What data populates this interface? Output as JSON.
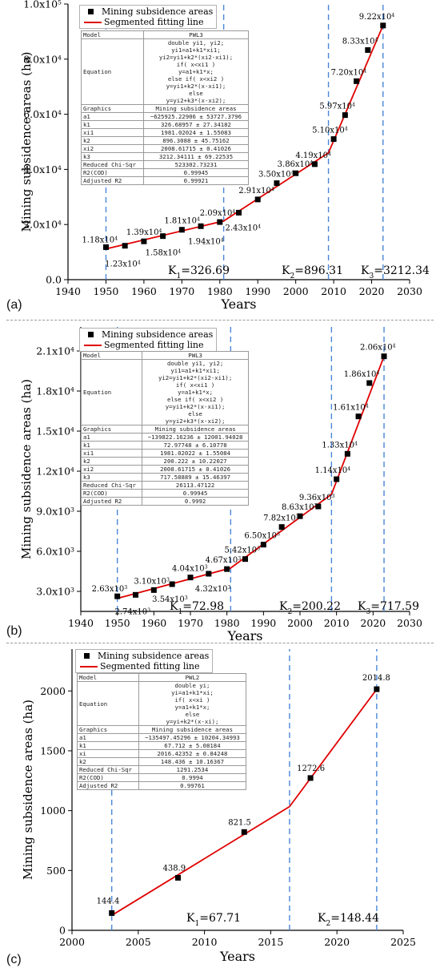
{
  "colors": {
    "fit_line": "#e00000",
    "marker": "#000000",
    "dashed_line": "#4a86d8",
    "separator": "#9a9a9a"
  },
  "panels": [
    {
      "panel_label": "(a)",
      "legend": {
        "marker_label": "Mining subsidence areas",
        "line_label": "Segmented fitting line"
      },
      "table": {
        "model_label": "Model",
        "model": "PWL3",
        "equation_label": "Equation",
        "equation": [
          "double yi1, yi2;",
          "yi1=a1+k1*xi1;",
          "yi2=yi1+k2*(xi2-xi1);",
          "if( x<xi1 )",
          "y=a1+k1*x;",
          "else if( x<xi2 )",
          "y=yi1+k2*(x-xi1);",
          "else",
          "y=yi2+k3*(x-xi2);"
        ],
        "graphics_label": "Graphics",
        "graphics": "Mining subsidence areas",
        "params": [
          {
            "name": "a1",
            "value": "−625925.22906 ± 53727.3796"
          },
          {
            "name": "k1",
            "value": "326.68957 ± 27.34182"
          },
          {
            "name": "xi1",
            "value": "1981.02024 ± 1.55083"
          },
          {
            "name": "k2",
            "value": "896.3088 ± 45.75162"
          },
          {
            "name": "xi2",
            "value": "2008.61715 ± 0.41026"
          },
          {
            "name": "k3",
            "value": "3212.34111 ± 69.22535"
          }
        ],
        "stats": [
          {
            "name": "Reduced Chi-Sqr",
            "value": "523302.73231"
          },
          {
            "name": "R2(COD)",
            "value": "0.99945"
          },
          {
            "name": "Adjusted R2",
            "value": "0.99921"
          }
        ]
      },
      "slopes": [
        {
          "name": "K1",
          "sub": "1",
          "value": "=326.69"
        },
        {
          "name": "K2",
          "sub": "2",
          "value": "=896.31"
        },
        {
          "name": "K3",
          "sub": "3",
          "value": "=3212.34"
        }
      ],
      "chart_data": {
        "type": "scatter",
        "xlabel": "Years",
        "ylabel": "Mining subsidence areas (ha)",
        "xlim": [
          1940,
          2030
        ],
        "ylim": [
          0,
          100000
        ],
        "x_ticks": [
          "1940",
          "1950",
          "1960",
          "1970",
          "1980",
          "1990",
          "2000",
          "2010",
          "2020",
          "2030"
        ],
        "y_ticks": [
          {
            "value": 0,
            "mant": "0.0",
            "exp": ""
          },
          {
            "value": 20000,
            "mant": "2.0x10",
            "exp": "4"
          },
          {
            "value": 40000,
            "mant": "4.0x10",
            "exp": "4"
          },
          {
            "value": 60000,
            "mant": "6.0x10",
            "exp": "4"
          },
          {
            "value": 80000,
            "mant": "8.0x10",
            "exp": "4"
          },
          {
            "value": 100000,
            "mant": "1.0x10",
            "exp": "5"
          }
        ],
        "points": [
          {
            "x": 1950,
            "y": 11800,
            "mant": "1.18x10",
            "exp": "4"
          },
          {
            "x": 1955,
            "y": 12300,
            "mant": "1.23x10",
            "exp": "4"
          },
          {
            "x": 1960,
            "y": 13900,
            "mant": "1.39x10",
            "exp": "4"
          },
          {
            "x": 1965,
            "y": 15800,
            "mant": "1.58x10",
            "exp": "4"
          },
          {
            "x": 1970,
            "y": 18100,
            "mant": "1.81x10",
            "exp": "4"
          },
          {
            "x": 1975,
            "y": 19400,
            "mant": "1.94x10",
            "exp": "4"
          },
          {
            "x": 1980,
            "y": 20900,
            "mant": "2.09x10",
            "exp": "4"
          },
          {
            "x": 1985,
            "y": 24300,
            "mant": "2.43x10",
            "exp": "4"
          },
          {
            "x": 1990,
            "y": 29100,
            "mant": "2.91x10",
            "exp": "4"
          },
          {
            "x": 1995,
            "y": 35000,
            "mant": "3.50x10",
            "exp": "4"
          },
          {
            "x": 2000,
            "y": 38600,
            "mant": "3.86x10",
            "exp": "4"
          },
          {
            "x": 2005,
            "y": 41900,
            "mant": "4.19x10",
            "exp": "4"
          },
          {
            "x": 2010,
            "y": 51000,
            "mant": "5.10x10",
            "exp": "4"
          },
          {
            "x": 2013,
            "y": 59700,
            "mant": "5.97x10",
            "exp": "4"
          },
          {
            "x": 2016,
            "y": 72000,
            "mant": "7.20x10",
            "exp": "4"
          },
          {
            "x": 2019,
            "y": 83300,
            "mant": "8.33x10",
            "exp": "4"
          },
          {
            "x": 2023,
            "y": 92200,
            "mant": "9.22x10",
            "exp": "4"
          }
        ],
        "fit_line": [
          {
            "x": 1950,
            "y": 11150
          },
          {
            "x": 1981.02,
            "y": 21284
          },
          {
            "x": 2008.62,
            "y": 46020
          },
          {
            "x": 2023,
            "y": 92200
          }
        ],
        "breakpoints": [
          1950,
          1981.02,
          2008.62,
          2023
        ]
      }
    },
    {
      "panel_label": "(b)",
      "legend": {
        "marker_label": "Mining subsidence areas",
        "line_label": "Segmented fitting line"
      },
      "table": {
        "model_label": "Model",
        "model": "PWL3",
        "equation_label": "Equation",
        "equation": [
          "double yi1, yi2;",
          "yi1=a1+k1*xi1;",
          "yi2=yi1+k2*(xi2-xi1);",
          "if( x<xi1 )",
          "y=a1+k1*x;",
          "else if( x<xi2 )",
          "y=yi1+k2*(x-xi1);",
          "else",
          "y=yi2+k3*(x-xi2);"
        ],
        "graphics_label": "Graphics",
        "graphics": "Mining subsidence areas",
        "params": [
          {
            "name": "a1",
            "value": "−139822.16236 ± 12001.94028"
          },
          {
            "name": "k1",
            "value": "72.97748 ± 6.10778"
          },
          {
            "name": "xi1",
            "value": "1981.02022 ± 1.55084"
          },
          {
            "name": "k2",
            "value": "200.222 ± 10.22027"
          },
          {
            "name": "xi2",
            "value": "2008.61715 ± 0.41026"
          },
          {
            "name": "k3",
            "value": "717.58889 ± 15.46397"
          }
        ],
        "stats": [
          {
            "name": "Reduced Chi-Sqr",
            "value": "26113.47122"
          },
          {
            "name": "R2(COD)",
            "value": "0.99945"
          },
          {
            "name": "Adjusted R2",
            "value": "0.9992"
          }
        ]
      },
      "slopes": [
        {
          "name": "K1",
          "sub": "1",
          "value": "=72.98"
        },
        {
          "name": "K2",
          "sub": "2",
          "value": "=200.22"
        },
        {
          "name": "K3",
          "sub": "3",
          "value": "=717.59"
        }
      ],
      "chart_data": {
        "type": "scatter",
        "xlabel": "Years",
        "ylabel": "Mining subsidence areas (ha)",
        "xlim": [
          1940,
          2030
        ],
        "ylim": [
          1500,
          22800
        ],
        "x_ticks": [
          "1940",
          "1950",
          "1960",
          "1970",
          "1980",
          "1990",
          "2000",
          "2010",
          "2020",
          "2030"
        ],
        "y_ticks": [
          {
            "value": 3000,
            "mant": "3.0x10",
            "exp": "3"
          },
          {
            "value": 6000,
            "mant": "6.0x10",
            "exp": "3"
          },
          {
            "value": 9000,
            "mant": "9.0x10",
            "exp": "3"
          },
          {
            "value": 12000,
            "mant": "1.2x10",
            "exp": "4"
          },
          {
            "value": 15000,
            "mant": "1.5x10",
            "exp": "4"
          },
          {
            "value": 18000,
            "mant": "1.8x10",
            "exp": "4"
          },
          {
            "value": 21000,
            "mant": "2.1x10",
            "exp": "4"
          }
        ],
        "points": [
          {
            "x": 1950,
            "y": 2630,
            "mant": "2.63x10",
            "exp": "3"
          },
          {
            "x": 1955,
            "y": 2740,
            "mant": "2.74x10",
            "exp": "3"
          },
          {
            "x": 1960,
            "y": 3100,
            "mant": "3.10x10",
            "exp": "3"
          },
          {
            "x": 1965,
            "y": 3540,
            "mant": "3.54x10",
            "exp": "3"
          },
          {
            "x": 1970,
            "y": 4040,
            "mant": "4.04x10",
            "exp": "3"
          },
          {
            "x": 1975,
            "y": 4320,
            "mant": "4.32x10",
            "exp": "3"
          },
          {
            "x": 1980,
            "y": 4670,
            "mant": "4.67x10",
            "exp": "3"
          },
          {
            "x": 1985,
            "y": 5420,
            "mant": "5.42x10",
            "exp": "3"
          },
          {
            "x": 1990,
            "y": 6500,
            "mant": "6.50x10",
            "exp": "3"
          },
          {
            "x": 1995,
            "y": 7820,
            "mant": "7.82x10",
            "exp": "3"
          },
          {
            "x": 2000,
            "y": 8630,
            "mant": "8.63x10",
            "exp": "3"
          },
          {
            "x": 2005,
            "y": 9360,
            "mant": "9.36x10",
            "exp": "3"
          },
          {
            "x": 2010,
            "y": 11400,
            "mant": "1.14x10",
            "exp": "4"
          },
          {
            "x": 2013,
            "y": 13300,
            "mant": "1.33x10",
            "exp": "4"
          },
          {
            "x": 2016,
            "y": 16100,
            "mant": "1.61x10",
            "exp": "4"
          },
          {
            "x": 2019,
            "y": 18600,
            "mant": "1.86x10",
            "exp": "4"
          },
          {
            "x": 2023,
            "y": 20600,
            "mant": "2.06x10",
            "exp": "4"
          }
        ],
        "fit_line": [
          {
            "x": 1950,
            "y": 2480
          },
          {
            "x": 1981.02,
            "y": 4745
          },
          {
            "x": 2008.62,
            "y": 10270
          },
          {
            "x": 2023,
            "y": 20600
          }
        ],
        "breakpoints": [
          1950,
          1981.02,
          2008.62,
          2023
        ]
      }
    },
    {
      "panel_label": "(c)",
      "legend": {
        "marker_label": "Mining subsidence areas",
        "line_label": "Segmented fitting line"
      },
      "table": {
        "model_label": "Model",
        "model": "PWL2",
        "equation_label": "Equation",
        "equation": [
          "double yi;",
          "yi=a1+k1*xi;",
          "if( x<xi )",
          "y=a1+k1*x;",
          "else",
          "y=yi+k2*(x-xi);"
        ],
        "graphics_label": "Graphics",
        "graphics": "Mining subsidence areas",
        "params": [
          {
            "name": "a1",
            "value": "−135497.45296 ± 10204.34993"
          },
          {
            "name": "k1",
            "value": "67.712 ± 5.08184"
          },
          {
            "name": "xi",
            "value": "2016.42352 ± 0.84248"
          },
          {
            "name": "k2",
            "value": "148.436 ± 10.16367"
          }
        ],
        "stats": [
          {
            "name": "Reduced Chi-Sqr",
            "value": "1291.2534"
          },
          {
            "name": "R2(COD)",
            "value": "0.9994"
          },
          {
            "name": "Adjusted R2",
            "value": "0.99761"
          }
        ]
      },
      "slopes": [
        {
          "name": "K1",
          "sub": "1",
          "value": "=67.71"
        },
        {
          "name": "K2",
          "sub": "2",
          "value": "=148.44"
        }
      ],
      "chart_data": {
        "type": "scatter",
        "xlabel": "Years",
        "ylabel": "Mining subsidence areas (ha)",
        "xlim": [
          2000,
          2025
        ],
        "ylim": [
          0,
          2350
        ],
        "x_ticks": [
          "2000",
          "2005",
          "2010",
          "2015",
          "2020",
          "2025"
        ],
        "y_ticks": [
          {
            "value": 0,
            "mant": "0",
            "exp": ""
          },
          {
            "value": 500,
            "mant": "500",
            "exp": ""
          },
          {
            "value": 1000,
            "mant": "1000",
            "exp": ""
          },
          {
            "value": 1500,
            "mant": "1500",
            "exp": ""
          },
          {
            "value": 2000,
            "mant": "2000",
            "exp": ""
          }
        ],
        "points": [
          {
            "x": 2003,
            "y": 144.4,
            "mant": "144.4",
            "exp": ""
          },
          {
            "x": 2008,
            "y": 438.9,
            "mant": "438.9",
            "exp": ""
          },
          {
            "x": 2013,
            "y": 821.5,
            "mant": "821.5",
            "exp": ""
          },
          {
            "x": 2018,
            "y": 1272.6,
            "mant": "1272.6",
            "exp": ""
          },
          {
            "x": 2023,
            "y": 2014.8,
            "mant": "2014.8",
            "exp": ""
          }
        ],
        "fit_line": [
          {
            "x": 2003,
            "y": 125
          },
          {
            "x": 2016.42,
            "y": 1034
          },
          {
            "x": 2023,
            "y": 2014.8
          }
        ],
        "breakpoints": [
          2003,
          2016.42,
          2023
        ]
      }
    }
  ]
}
